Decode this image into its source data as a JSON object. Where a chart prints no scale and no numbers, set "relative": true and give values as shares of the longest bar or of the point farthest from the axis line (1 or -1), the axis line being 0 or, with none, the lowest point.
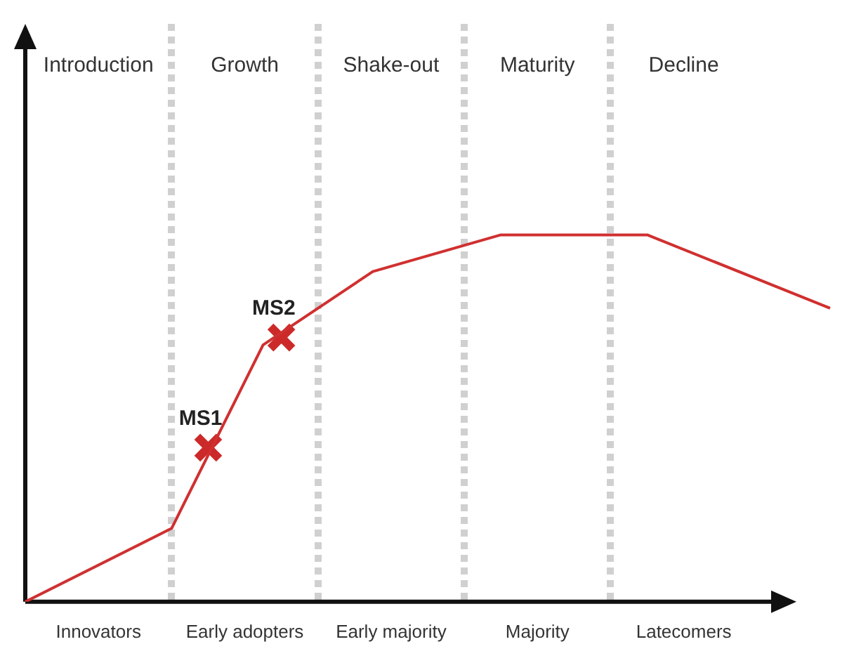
{
  "chart_data": {
    "type": "line",
    "relative": true,
    "categories": [
      null,
      null,
      null,
      null,
      "Innovators",
      null,
      null,
      null,
      null,
      null,
      null,
      null,
      "Early adopters",
      null,
      null,
      null,
      null,
      null,
      null,
      null,
      "Early majority",
      null,
      null,
      null,
      null,
      null,
      null,
      null,
      "Majority",
      null,
      null,
      null,
      null,
      null,
      null,
      null,
      "Latecomers",
      null,
      null,
      null,
      null,
      null,
      null,
      null,
      null
    ],
    "series": [
      {
        "color": "#d03030",
        "values": [
          0,
          null,
          null,
          null,
          null,
          null,
          null,
          null,
          0.2,
          null,
          null,
          null,
          null,
          0.7,
          null,
          null,
          null,
          null,
          null,
          0.9,
          null,
          null,
          null,
          null,
          null,
          null,
          1,
          null,
          null,
          null,
          null,
          null,
          null,
          null,
          1,
          null,
          null,
          null,
          null,
          null,
          null,
          null,
          null,
          null,
          0.8
        ]
      },
      {
        "type": "scatter",
        "name": "MS1",
        "color": "#cc2a2a",
        "marker": "cross",
        "values": [
          null,
          null,
          null,
          null,
          null,
          null,
          null,
          null,
          null,
          null,
          0.42,
          null,
          null,
          null,
          null,
          null,
          null,
          null,
          null,
          null,
          null,
          null,
          null,
          null,
          null,
          null,
          null,
          null,
          null,
          null,
          null,
          null,
          null,
          null,
          null,
          null,
          null,
          null,
          null,
          null,
          null,
          null,
          null,
          null,
          null
        ]
      },
      {
        "type": "scatter",
        "name": "MS2",
        "color": "#cc2a2a",
        "marker": "cross",
        "values": [
          null,
          null,
          null,
          null,
          null,
          null,
          null,
          null,
          null,
          null,
          null,
          null,
          null,
          null,
          0.72,
          null,
          null,
          null,
          null,
          null,
          null,
          null,
          null,
          null,
          null,
          null,
          null,
          null,
          null,
          null,
          null,
          null,
          null,
          null,
          null,
          null,
          null,
          null,
          null,
          null,
          null,
          null,
          null,
          null,
          null
        ]
      }
    ],
    "annotations": [
      "Introduction",
      "Growth",
      "Shake-out",
      "Maturity",
      "Decline"
    ],
    "grid": "x",
    "legend": false
  }
}
